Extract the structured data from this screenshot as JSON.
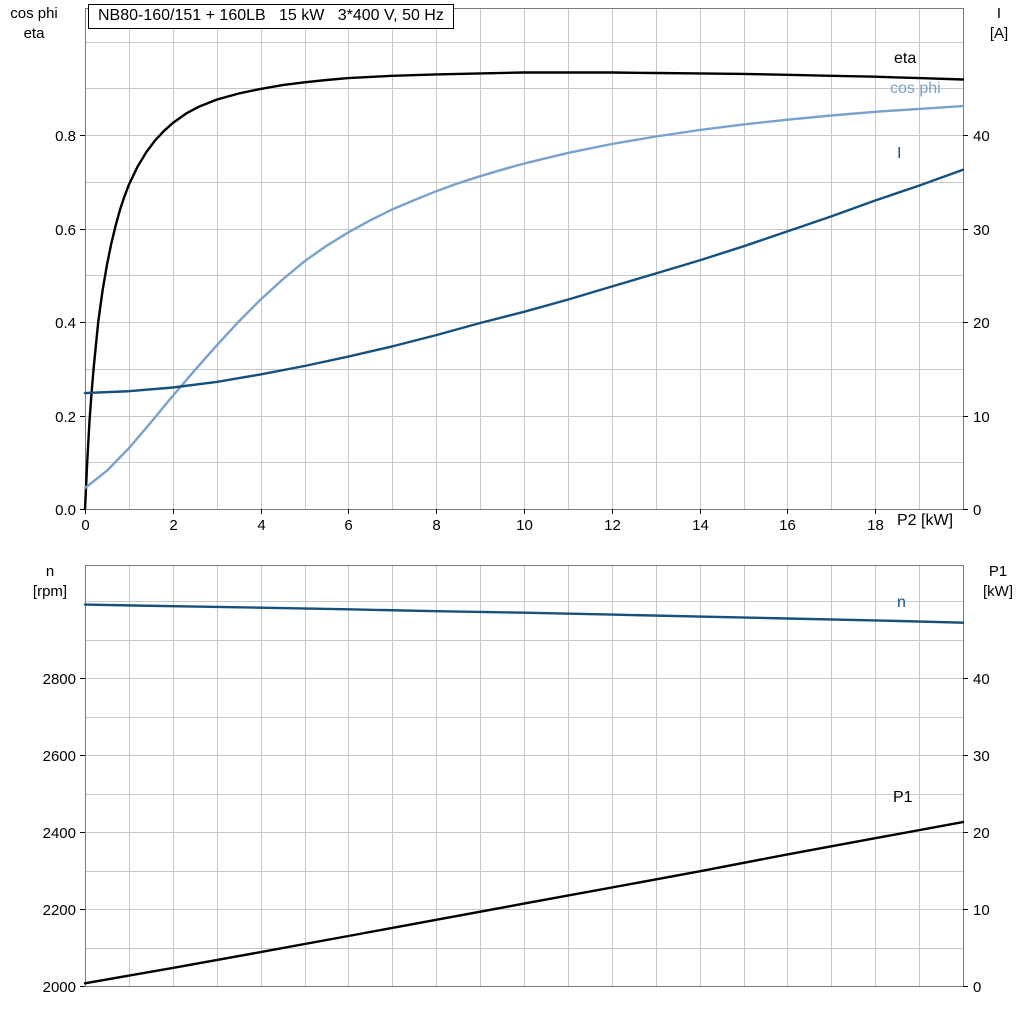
{
  "title_box": "NB80-160/151 + 160LB   15 kW   3*400 V, 50 Hz",
  "x_axis_label": "P2 [kW]",
  "colors": {
    "eta": "#000000",
    "cos_phi": "#78a2cc",
    "current": "#16507d",
    "speed": "#16507d",
    "p1": "#000000",
    "grid": "#c8c8c8",
    "frame": "#7a7a7a",
    "text": "#000000"
  },
  "axis_titles": {
    "top_left": [
      "cos phi",
      "eta"
    ],
    "top_right": [
      "I",
      "[A]"
    ],
    "bottom_left": [
      "n",
      "[rpm]"
    ],
    "bottom_right": [
      "P1",
      "[kW]"
    ]
  },
  "curve_labels": {
    "eta": "eta",
    "cos_phi": "cos phi",
    "current": "I",
    "speed": "n",
    "p1": "P1"
  },
  "chart_data": [
    {
      "type": "line",
      "title": "NB80-160/151 + 160LB   15 kW   3*400 V, 50 Hz",
      "xlabel": "P2 [kW]",
      "ylabel_left": "cos phi / eta",
      "ylabel_right": "I [A]",
      "xlim": [
        0,
        20
      ],
      "ylim_left": [
        0,
        1.072
      ],
      "ylim_right": [
        0,
        53.6
      ],
      "grid": true,
      "x_grid_step": 1,
      "y_grid_step_left": 0.1,
      "x_ticks": [
        {
          "v": 0,
          "label": "0"
        },
        {
          "v": 2,
          "label": "2"
        },
        {
          "v": 4,
          "label": "4"
        },
        {
          "v": 6,
          "label": "6"
        },
        {
          "v": 8,
          "label": "8"
        },
        {
          "v": 10,
          "label": "10"
        },
        {
          "v": 12,
          "label": "12"
        },
        {
          "v": 14,
          "label": "14"
        },
        {
          "v": 16,
          "label": "16"
        },
        {
          "v": 18,
          "label": "18"
        }
      ],
      "y_ticks_left": [
        {
          "v": 0,
          "label": "0.0"
        },
        {
          "v": 0.2,
          "label": "0.2"
        },
        {
          "v": 0.4,
          "label": "0.4"
        },
        {
          "v": 0.6,
          "label": "0.6"
        },
        {
          "v": 0.8,
          "label": "0.8"
        }
      ],
      "y_ticks_right": [
        {
          "v": 0,
          "label": "0"
        },
        {
          "v": 10,
          "label": "10"
        },
        {
          "v": 20,
          "label": "20"
        },
        {
          "v": 30,
          "label": "30"
        },
        {
          "v": 40,
          "label": "40"
        }
      ],
      "series": [
        {
          "name": "eta",
          "axis": "left",
          "color_key": "eta",
          "points": [
            [
              0,
              0
            ],
            [
              0.05,
              0.1
            ],
            [
              0.1,
              0.185
            ],
            [
              0.15,
              0.25
            ],
            [
              0.2,
              0.305
            ],
            [
              0.3,
              0.4
            ],
            [
              0.4,
              0.468
            ],
            [
              0.5,
              0.523
            ],
            [
              0.6,
              0.568
            ],
            [
              0.7,
              0.607
            ],
            [
              0.8,
              0.641
            ],
            [
              0.9,
              0.669
            ],
            [
              1.0,
              0.694
            ],
            [
              1.2,
              0.733
            ],
            [
              1.4,
              0.764
            ],
            [
              1.6,
              0.789
            ],
            [
              1.8,
              0.809
            ],
            [
              2.0,
              0.826
            ],
            [
              2.3,
              0.846
            ],
            [
              2.6,
              0.861
            ],
            [
              3.0,
              0.876
            ],
            [
              3.5,
              0.889
            ],
            [
              4.0,
              0.899
            ],
            [
              4.5,
              0.907
            ],
            [
              5.0,
              0.913
            ],
            [
              5.5,
              0.918
            ],
            [
              6.0,
              0.922
            ],
            [
              7,
              0.927
            ],
            [
              8,
              0.93
            ],
            [
              9,
              0.932
            ],
            [
              10,
              0.934
            ],
            [
              11,
              0.934
            ],
            [
              12,
              0.934
            ],
            [
              13,
              0.933
            ],
            [
              14,
              0.932
            ],
            [
              15,
              0.931
            ],
            [
              16,
              0.929
            ],
            [
              17,
              0.927
            ],
            [
              18,
              0.925
            ],
            [
              19,
              0.922
            ],
            [
              20,
              0.919
            ]
          ]
        },
        {
          "name": "cos phi",
          "axis": "left",
          "color_key": "cos_phi",
          "points": [
            [
              0,
              0.045
            ],
            [
              0.5,
              0.082
            ],
            [
              1,
              0.13
            ],
            [
              1.5,
              0.185
            ],
            [
              2,
              0.242
            ],
            [
              2.5,
              0.297
            ],
            [
              3,
              0.35
            ],
            [
              3.5,
              0.401
            ],
            [
              4,
              0.448
            ],
            [
              4.5,
              0.491
            ],
            [
              5,
              0.53
            ],
            [
              5.5,
              0.563
            ],
            [
              6,
              0.592
            ],
            [
              6.5,
              0.618
            ],
            [
              7,
              0.641
            ],
            [
              7.5,
              0.661
            ],
            [
              8,
              0.68
            ],
            [
              8.5,
              0.697
            ],
            [
              9,
              0.712
            ],
            [
              9.5,
              0.726
            ],
            [
              10,
              0.739
            ],
            [
              11,
              0.762
            ],
            [
              12,
              0.781
            ],
            [
              13,
              0.797
            ],
            [
              14,
              0.811
            ],
            [
              15,
              0.823
            ],
            [
              16,
              0.833
            ],
            [
              17,
              0.842
            ],
            [
              18,
              0.85
            ],
            [
              19,
              0.856
            ],
            [
              20,
              0.862
            ]
          ]
        },
        {
          "name": "I",
          "axis": "right",
          "color_key": "current",
          "points": [
            [
              0,
              12.4
            ],
            [
              1,
              12.6
            ],
            [
              2,
              13.0
            ],
            [
              3,
              13.6
            ],
            [
              4,
              14.4
            ],
            [
              5,
              15.3
            ],
            [
              6,
              16.3
            ],
            [
              7,
              17.4
            ],
            [
              8,
              18.6
            ],
            [
              9,
              19.9
            ],
            [
              10,
              21.1
            ],
            [
              11,
              22.4
            ],
            [
              12,
              23.8
            ],
            [
              13,
              25.2
            ],
            [
              14,
              26.6
            ],
            [
              15,
              28.1
            ],
            [
              16,
              29.7
            ],
            [
              17,
              31.3
            ],
            [
              18,
              33.0
            ],
            [
              19,
              34.6
            ],
            [
              20,
              36.3
            ]
          ]
        }
      ]
    },
    {
      "type": "line",
      "title": "",
      "xlabel": "",
      "ylabel_left": "n [rpm]",
      "ylabel_right": "P1 [kW]",
      "xlim": [
        0,
        20
      ],
      "ylim_left": [
        2000,
        3094
      ],
      "ylim_right": [
        0,
        54.7
      ],
      "grid": true,
      "x_grid_step": 1,
      "y_grid_step_left": 100,
      "x_ticks": [],
      "y_ticks_left": [
        {
          "v": 2000,
          "label": "2000"
        },
        {
          "v": 2200,
          "label": "2200"
        },
        {
          "v": 2400,
          "label": "2400"
        },
        {
          "v": 2600,
          "label": "2600"
        },
        {
          "v": 2800,
          "label": "2800"
        }
      ],
      "y_ticks_right": [
        {
          "v": 0,
          "label": "0"
        },
        {
          "v": 10,
          "label": "10"
        },
        {
          "v": 20,
          "label": "20"
        },
        {
          "v": 30,
          "label": "30"
        },
        {
          "v": 40,
          "label": "40"
        }
      ],
      "series": [
        {
          "name": "n",
          "axis": "left",
          "color_key": "speed",
          "points": [
            [
              0,
              2991
            ],
            [
              2,
              2987
            ],
            [
              4,
              2983
            ],
            [
              6,
              2979
            ],
            [
              8,
              2974
            ],
            [
              10,
              2970
            ],
            [
              12,
              2965
            ],
            [
              14,
              2960
            ],
            [
              16,
              2955
            ],
            [
              18,
              2950
            ],
            [
              20,
              2944
            ]
          ]
        },
        {
          "name": "P1",
          "axis": "right",
          "color_key": "p1",
          "points": [
            [
              0,
              0.35
            ],
            [
              2,
              2.35
            ],
            [
              4,
              4.4
            ],
            [
              6,
              6.5
            ],
            [
              8,
              8.6
            ],
            [
              10,
              10.7
            ],
            [
              12,
              12.8
            ],
            [
              14,
              14.9
            ],
            [
              16,
              17.1
            ],
            [
              18,
              19.2
            ],
            [
              20,
              21.3
            ]
          ]
        }
      ]
    }
  ]
}
